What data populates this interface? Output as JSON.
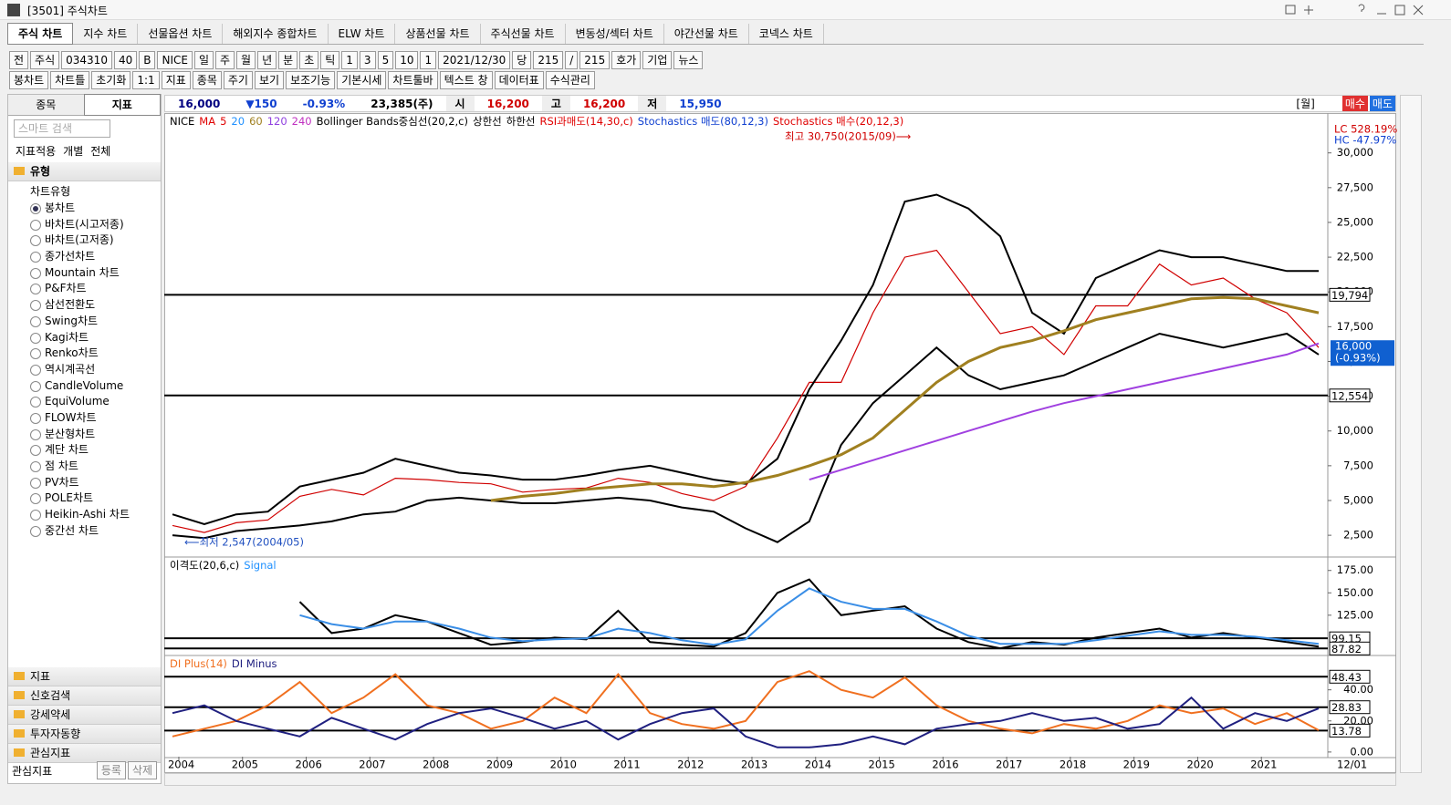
{
  "window": {
    "title": "[3501] 주식차트"
  },
  "tabs": [
    "주식 차트",
    "지수 차트",
    "선물옵션 차트",
    "해외지수 종합차트",
    "ELW 차트",
    "상품선물 차트",
    "주식선물 차트",
    "변동성/섹터 차트",
    "야간선물 차트",
    "코넥스 차트"
  ],
  "toolbar1": [
    "전",
    "주식",
    "034310",
    "40",
    "B",
    "NICE",
    "일",
    "주",
    "월",
    "년",
    "분",
    "초",
    "틱",
    "1",
    "3",
    "5",
    "10",
    "1",
    "2021/12/30",
    "당",
    "215",
    "/",
    "215",
    "호가",
    "기업",
    "뉴스"
  ],
  "toolbar2": [
    "봉차트",
    "차트틀",
    "초기화",
    "1:1",
    "지표",
    "종목",
    "주기",
    "보기",
    "보조기능",
    "기본시세",
    "차트툴바",
    "텍스트 창",
    "데이터표",
    "수식관리"
  ],
  "sidebar": {
    "tabs": [
      "종목",
      "지표"
    ],
    "search": "스마트 검색",
    "apply": "지표적용",
    "apply_options": [
      "개별",
      "전체"
    ],
    "group": "유형",
    "subgroup": "차트유형",
    "items": [
      "봉차트",
      "바차트(시고저종)",
      "바차트(고저종)",
      "종가선차트",
      "Mountain 차트",
      "P&F차트",
      "삼선전환도",
      "Swing차트",
      "Kagi차트",
      "Renko차트",
      "역시계곡선",
      "CandleVolume",
      "EquiVolume",
      "FLOW차트",
      "분산형차트",
      "계단 차트",
      "점 차트",
      "PV차트",
      "POLE차트",
      "Heikin-Ashi 차트",
      "중간선 차트"
    ],
    "selected": 0,
    "sections": [
      "지표",
      "신호검색",
      "강세약세",
      "투자자동향",
      "관심지표"
    ],
    "footer": "관심지표",
    "buttons": [
      "등록",
      "삭제"
    ]
  },
  "quote": {
    "fields": [
      "16,000",
      "▼150",
      "-0.93%",
      "23,385(주)",
      "시",
      "16,200",
      "고",
      "16,200",
      "저",
      "15,950"
    ],
    "colors": [
      "#000080",
      "#1040d0",
      "#1040d0",
      "#000",
      "#000",
      "#d00000",
      "#000",
      "#d00000",
      "#000",
      "#1040d0"
    ],
    "period": "[월]",
    "buy": "매수",
    "sell": "매도"
  },
  "chart_data": [
    {
      "type": "line",
      "legend": [
        {
          "text": "NICE",
          "color": "#000"
        },
        {
          "text": "MA",
          "color": "#e00000"
        },
        {
          "text": "5",
          "color": "#e00000"
        },
        {
          "text": "20",
          "color": "#1e90ff"
        },
        {
          "text": "60",
          "color": "#a08020"
        },
        {
          "text": "120",
          "color": "#9040e0"
        },
        {
          "text": "240",
          "color": "#c030c0"
        },
        {
          "text": "Bollinger Bands중심선(20,2,c)",
          "color": "#000"
        },
        {
          "text": "상한선",
          "color": "#000"
        },
        {
          "text": "하한선",
          "color": "#000"
        },
        {
          "text": "RSI과매도(14,30,c)",
          "color": "#e00000"
        },
        {
          "text": "Stochastics 매도(80,12,3)",
          "color": "#1040d0"
        },
        {
          "text": "Stochastics 매수(20,12,3)",
          "color": "#e00000"
        }
      ],
      "annotations": [
        {
          "text": "최고 30,750(2015/09)⟶",
          "color": "#d00000"
        },
        {
          "text": "⟵최저 2,547(2004/05)",
          "color": "#2050c0"
        }
      ],
      "extremes": [
        {
          "text": "LC 528.19%",
          "color": "#d00000"
        },
        {
          "text": "HC -47.97%",
          "color": "#1040d0"
        }
      ],
      "last": 16000,
      "last_label": "16,000",
      "last_change": "(-0.93%)",
      "x": [
        2003.9,
        2004.4,
        2004.9,
        2005.4,
        2005.9,
        2006.4,
        2006.9,
        2007.4,
        2007.9,
        2008.4,
        2008.9,
        2009.4,
        2009.9,
        2010.4,
        2010.9,
        2011.4,
        2011.9,
        2012.4,
        2012.9,
        2013.4,
        2013.9,
        2014.4,
        2014.9,
        2015.4,
        2015.9,
        2016.4,
        2016.9,
        2017.4,
        2017.9,
        2018.4,
        2018.9,
        2019.4,
        2019.9,
        2020.4,
        2020.9,
        2021.4,
        2021.9
      ],
      "series": [
        {
          "color": "#d00000",
          "values": [
            3200,
            2700,
            3400,
            3600,
            5300,
            5800,
            5400,
            6600,
            6500,
            6300,
            6200,
            5600,
            5800,
            5900,
            6600,
            6300,
            5500,
            5000,
            6000,
            9500,
            13500,
            13500,
            18500,
            22500,
            23000,
            20000,
            17000,
            17500,
            15500,
            19000,
            19000,
            22000,
            20500,
            21000,
            19500,
            18500,
            16000
          ]
        },
        {
          "color": "#000",
          "values": [
            4000,
            3300,
            4000,
            4200,
            6000,
            6500,
            7000,
            8000,
            7500,
            7000,
            6800,
            6500,
            6500,
            6800,
            7200,
            7500,
            7000,
            6500,
            6200,
            8000,
            13000,
            16500,
            20500,
            26500,
            27000,
            26000,
            24000,
            18500,
            17000,
            21000,
            22000,
            23000,
            22500,
            22500,
            22000,
            21500,
            21500
          ]
        },
        {
          "color": "#000",
          "values": [
            2500,
            2300,
            2800,
            3000,
            3200,
            3500,
            4000,
            4200,
            5000,
            5200,
            5000,
            4800,
            4800,
            5000,
            5200,
            5000,
            4500,
            4200,
            3000,
            2000,
            3500,
            9000,
            12000,
            14000,
            16000,
            14000,
            13000,
            13500,
            14000,
            15000,
            16000,
            17000,
            16500,
            16000,
            16500,
            17000,
            15500
          ]
        },
        {
          "color": "#a08020",
          "values": [
            null,
            null,
            null,
            null,
            null,
            null,
            null,
            null,
            null,
            null,
            5000,
            5300,
            5500,
            5800,
            6000,
            6200,
            6200,
            6000,
            6300,
            6800,
            7500,
            8300,
            9500,
            11500,
            13500,
            15000,
            16000,
            16500,
            17200,
            18000,
            18500,
            19000,
            19500,
            19600,
            19500,
            19000,
            18500
          ]
        },
        {
          "color": "#a040e0",
          "values": [
            null,
            null,
            null,
            null,
            null,
            null,
            null,
            null,
            null,
            null,
            null,
            null,
            null,
            null,
            null,
            null,
            null,
            null,
            null,
            null,
            6500,
            7200,
            7900,
            8600,
            9300,
            10000,
            10700,
            11400,
            12000,
            12500,
            13000,
            13500,
            14000,
            14500,
            15000,
            15500,
            16300
          ]
        }
      ],
      "xlim": [
        2003.8,
        2022.0
      ],
      "ylim": [
        1000,
        32800
      ],
      "yticks": [
        {
          "value": 2500,
          "label": "2,500"
        },
        {
          "value": 5000,
          "label": "5,000"
        },
        {
          "value": 7500,
          "label": "7,500"
        },
        {
          "value": 10000,
          "label": "10,000"
        },
        {
          "value": 12500,
          "label": "12,500"
        },
        {
          "value": 15000,
          "label": "15,000"
        },
        {
          "value": 17500,
          "label": "17,500"
        },
        {
          "value": 20000,
          "label": "20,000"
        },
        {
          "value": 22500,
          "label": "22,500"
        },
        {
          "value": 25000,
          "label": "25,000"
        },
        {
          "value": 27500,
          "label": "27,500"
        },
        {
          "value": 30000,
          "label": "30,000"
        }
      ],
      "hlines": [
        {
          "value": 19794,
          "label": "19,794"
        },
        {
          "value": 12554,
          "label": "12,554"
        }
      ]
    },
    {
      "type": "line",
      "legend": [
        {
          "text": "이격도(20,6,c)",
          "color": "#000"
        },
        {
          "text": "Signal",
          "color": "#1e90ff"
        }
      ],
      "x": [
        2003.9,
        2004.4,
        2004.9,
        2005.4,
        2005.9,
        2006.4,
        2006.9,
        2007.4,
        2007.9,
        2008.4,
        2008.9,
        2009.4,
        2009.9,
        2010.4,
        2010.9,
        2011.4,
        2011.9,
        2012.4,
        2012.9,
        2013.4,
        2013.9,
        2014.4,
        2014.9,
        2015.4,
        2015.9,
        2016.4,
        2016.9,
        2017.4,
        2017.9,
        2018.4,
        2018.9,
        2019.4,
        2019.9,
        2020.4,
        2020.9,
        2021.4,
        2021.9
      ],
      "series": [
        {
          "color": "#000",
          "values": [
            null,
            null,
            null,
            null,
            140,
            105,
            110,
            125,
            118,
            105,
            92,
            95,
            100,
            98,
            130,
            95,
            92,
            90,
            105,
            150,
            165,
            125,
            130,
            135,
            110,
            95,
            88,
            95,
            92,
            100,
            105,
            110,
            100,
            105,
            100,
            95,
            90
          ]
        },
        {
          "color": "#3a8ee6",
          "values": [
            null,
            null,
            null,
            null,
            125,
            115,
            110,
            118,
            118,
            110,
            100,
            96,
            98,
            99,
            110,
            105,
            97,
            92,
            98,
            130,
            155,
            140,
            132,
            132,
            118,
            102,
            93,
            93,
            93,
            97,
            102,
            107,
            103,
            103,
            101,
            97,
            93
          ]
        }
      ],
      "xlim": [
        2003.8,
        2022.0
      ],
      "ylim": [
        81,
        189
      ],
      "yticks": [
        {
          "value": 125,
          "label": "125.00"
        },
        {
          "value": 150,
          "label": "150.00"
        },
        {
          "value": 175,
          "label": "175.00"
        }
      ],
      "hlines": [
        99.15,
        87.82
      ]
    },
    {
      "type": "line",
      "legend": [
        {
          "text": "DI Plus(14)",
          "color": "#f07020"
        },
        {
          "text": "DI Minus",
          "color": "#202080"
        }
      ],
      "x": [
        2003.9,
        2004.4,
        2004.9,
        2005.4,
        2005.9,
        2006.4,
        2006.9,
        2007.4,
        2007.9,
        2008.4,
        2008.9,
        2009.4,
        2009.9,
        2010.4,
        2010.9,
        2011.4,
        2011.9,
        2012.4,
        2012.9,
        2013.4,
        2013.9,
        2014.4,
        2014.9,
        2015.4,
        2015.9,
        2016.4,
        2016.9,
        2017.4,
        2017.9,
        2018.4,
        2018.9,
        2019.4,
        2019.9,
        2020.4,
        2020.9,
        2021.4,
        2021.9
      ],
      "series": [
        {
          "color": "#f07020",
          "values": [
            10,
            15,
            20,
            30,
            45,
            25,
            35,
            50,
            30,
            25,
            15,
            20,
            35,
            25,
            50,
            25,
            18,
            15,
            20,
            45,
            52,
            40,
            35,
            48,
            30,
            20,
            15,
            12,
            18,
            15,
            20,
            30,
            25,
            28,
            18,
            25,
            14
          ]
        },
        {
          "color": "#202080",
          "values": [
            25,
            30,
            20,
            15,
            10,
            22,
            15,
            8,
            18,
            25,
            28,
            22,
            15,
            20,
            8,
            18,
            25,
            28,
            10,
            3,
            3,
            5,
            10,
            5,
            15,
            18,
            20,
            25,
            20,
            22,
            15,
            18,
            35,
            15,
            25,
            20,
            28
          ]
        }
      ],
      "xlim": [
        2003.8,
        2022.0
      ],
      "ylim": [
        -3,
        61.5
      ],
      "yticks": [
        {
          "value": 0,
          "label": "0.00"
        },
        {
          "value": 20,
          "label": "20.00"
        },
        {
          "value": 40,
          "label": "40.00"
        }
      ],
      "hlines": [
        48.43,
        28.83,
        13.78
      ],
      "xticks": [
        2004,
        2005,
        2006,
        2007,
        2008,
        2009,
        2010,
        2011,
        2012,
        2013,
        2014,
        2015,
        2016,
        2017,
        2018,
        2019,
        2020,
        2021
      ],
      "x_end_label": "12/01"
    }
  ]
}
